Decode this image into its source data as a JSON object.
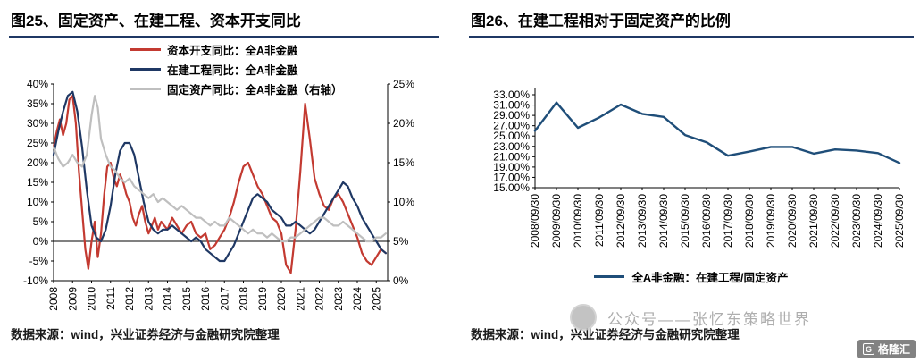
{
  "chart_data": [
    {
      "id": "fig25",
      "type": "line",
      "title": "图25、固定资产、在建工程、资本开支同比",
      "source": "数据来源：wind，兴业证券经济与金融研究院整理",
      "legend_position": "top",
      "grid": false,
      "x_tick_labels": [
        "2008",
        "2009",
        "2010",
        "2011",
        "2012",
        "2013",
        "2014",
        "2015",
        "2016",
        "2017",
        "2018",
        "2019",
        "2020",
        "2021",
        "2022",
        "2023",
        "2024",
        "2025"
      ],
      "left_axis": {
        "min": -10,
        "max": 40,
        "step": 5,
        "labels": [
          "40%",
          "35%",
          "30%",
          "25%",
          "20%",
          "15%",
          "10%",
          "5%",
          "0%",
          "-5%",
          "-10%"
        ]
      },
      "right_axis": {
        "min": 0,
        "max": 25,
        "step": 5,
        "labels": [
          "25%",
          "20%",
          "15%",
          "10%",
          "5%",
          "0%"
        ]
      },
      "series": [
        {
          "name": "资本开支同比：全A非金融",
          "color": "#C33A31",
          "axis": "left",
          "points": [
            [
              2008.0,
              24
            ],
            [
              2008.17,
              28
            ],
            [
              2008.33,
              31
            ],
            [
              2008.5,
              27
            ],
            [
              2008.67,
              30
            ],
            [
              2008.83,
              36
            ],
            [
              2009.0,
              37
            ],
            [
              2009.17,
              30
            ],
            [
              2009.33,
              18
            ],
            [
              2009.5,
              8
            ],
            [
              2009.67,
              -2
            ],
            [
              2009.83,
              -7
            ],
            [
              2010.0,
              0
            ],
            [
              2010.17,
              5
            ],
            [
              2010.33,
              -4
            ],
            [
              2010.5,
              2
            ],
            [
              2010.67,
              12
            ],
            [
              2010.83,
              19
            ],
            [
              2011.0,
              20
            ],
            [
              2011.17,
              16
            ],
            [
              2011.33,
              14
            ],
            [
              2011.5,
              17
            ],
            [
              2011.67,
              15
            ],
            [
              2011.83,
              12
            ],
            [
              2012.0,
              10
            ],
            [
              2012.17,
              6
            ],
            [
              2012.33,
              4
            ],
            [
              2012.5,
              7
            ],
            [
              2012.67,
              9
            ],
            [
              2012.83,
              5
            ],
            [
              2013.0,
              2
            ],
            [
              2013.17,
              4
            ],
            [
              2013.33,
              6
            ],
            [
              2013.5,
              3
            ],
            [
              2013.67,
              5
            ],
            [
              2013.83,
              4
            ],
            [
              2014.0,
              3
            ],
            [
              2014.25,
              6
            ],
            [
              2014.5,
              4
            ],
            [
              2014.75,
              2
            ],
            [
              2015.0,
              4
            ],
            [
              2015.25,
              5
            ],
            [
              2015.5,
              2
            ],
            [
              2015.75,
              1
            ],
            [
              2016.0,
              2
            ],
            [
              2016.25,
              -2
            ],
            [
              2016.5,
              -1
            ],
            [
              2016.75,
              1
            ],
            [
              2017.0,
              3
            ],
            [
              2017.25,
              6
            ],
            [
              2017.5,
              10
            ],
            [
              2017.75,
              15
            ],
            [
              2018.0,
              19
            ],
            [
              2018.25,
              20
            ],
            [
              2018.5,
              17
            ],
            [
              2018.75,
              14
            ],
            [
              2019.0,
              12
            ],
            [
              2019.25,
              9
            ],
            [
              2019.5,
              6
            ],
            [
              2019.75,
              5
            ],
            [
              2020.0,
              2
            ],
            [
              2020.25,
              -6
            ],
            [
              2020.5,
              -8
            ],
            [
              2020.75,
              3
            ],
            [
              2021.0,
              18
            ],
            [
              2021.25,
              35
            ],
            [
              2021.5,
              26
            ],
            [
              2021.75,
              16
            ],
            [
              2022.0,
              12
            ],
            [
              2022.25,
              9
            ],
            [
              2022.5,
              8
            ],
            [
              2022.75,
              11
            ],
            [
              2023.0,
              12
            ],
            [
              2023.25,
              10
            ],
            [
              2023.5,
              7
            ],
            [
              2023.75,
              4
            ],
            [
              2024.0,
              1
            ],
            [
              2024.25,
              -3
            ],
            [
              2024.5,
              -5
            ],
            [
              2024.75,
              -6
            ],
            [
              2025.0,
              -4
            ],
            [
              2025.25,
              -2
            ],
            [
              2025.5,
              -3
            ]
          ]
        },
        {
          "name": "在建工程同比：全A非金融",
          "color": "#1F3864",
          "axis": "left",
          "points": [
            [
              2008.0,
              22
            ],
            [
              2008.25,
              28
            ],
            [
              2008.5,
              33
            ],
            [
              2008.75,
              37
            ],
            [
              2009.0,
              38
            ],
            [
              2009.25,
              33
            ],
            [
              2009.5,
              24
            ],
            [
              2009.75,
              13
            ],
            [
              2010.0,
              4
            ],
            [
              2010.25,
              1
            ],
            [
              2010.5,
              0
            ],
            [
              2010.75,
              3
            ],
            [
              2011.0,
              9
            ],
            [
              2011.25,
              17
            ],
            [
              2011.5,
              23
            ],
            [
              2011.75,
              25
            ],
            [
              2012.0,
              25
            ],
            [
              2012.25,
              22
            ],
            [
              2012.5,
              16
            ],
            [
              2012.75,
              10
            ],
            [
              2013.0,
              5
            ],
            [
              2013.25,
              3
            ],
            [
              2013.5,
              2
            ],
            [
              2013.75,
              3
            ],
            [
              2014.0,
              3
            ],
            [
              2014.25,
              4
            ],
            [
              2014.5,
              3
            ],
            [
              2014.75,
              2
            ],
            [
              2015.0,
              1
            ],
            [
              2015.25,
              0
            ],
            [
              2015.5,
              1
            ],
            [
              2015.75,
              0
            ],
            [
              2016.0,
              -2
            ],
            [
              2016.25,
              -3
            ],
            [
              2016.5,
              -4
            ],
            [
              2016.75,
              -5
            ],
            [
              2017.0,
              -5
            ],
            [
              2017.25,
              -3
            ],
            [
              2017.5,
              -1
            ],
            [
              2017.75,
              2
            ],
            [
              2018.0,
              5
            ],
            [
              2018.25,
              8
            ],
            [
              2018.5,
              11
            ],
            [
              2018.75,
              12
            ],
            [
              2019.0,
              11
            ],
            [
              2019.25,
              10
            ],
            [
              2019.5,
              8
            ],
            [
              2019.75,
              7
            ],
            [
              2020.0,
              6
            ],
            [
              2020.25,
              4
            ],
            [
              2020.5,
              4
            ],
            [
              2020.75,
              5
            ],
            [
              2021.0,
              4
            ],
            [
              2021.25,
              3
            ],
            [
              2021.5,
              2
            ],
            [
              2021.75,
              3
            ],
            [
              2022.0,
              5
            ],
            [
              2022.25,
              7
            ],
            [
              2022.5,
              9
            ],
            [
              2022.75,
              11
            ],
            [
              2023.0,
              13
            ],
            [
              2023.25,
              15
            ],
            [
              2023.5,
              14
            ],
            [
              2023.75,
              11
            ],
            [
              2024.0,
              9
            ],
            [
              2024.25,
              6
            ],
            [
              2024.5,
              4
            ],
            [
              2024.75,
              2
            ],
            [
              2025.0,
              0
            ],
            [
              2025.25,
              -2
            ],
            [
              2025.5,
              -3
            ]
          ]
        },
        {
          "name": "固定资产同比：全A非金融（右轴）",
          "color": "#BFBFBF",
          "axis": "right",
          "points": [
            [
              2008.0,
              17
            ],
            [
              2008.25,
              15.5
            ],
            [
              2008.5,
              14.5
            ],
            [
              2008.75,
              15
            ],
            [
              2009.0,
              16
            ],
            [
              2009.25,
              15
            ],
            [
              2009.5,
              14.5
            ],
            [
              2009.75,
              16
            ],
            [
              2010.0,
              21
            ],
            [
              2010.17,
              23.5
            ],
            [
              2010.33,
              22
            ],
            [
              2010.5,
              18
            ],
            [
              2010.75,
              16
            ],
            [
              2011.0,
              14.5
            ],
            [
              2011.25,
              14
            ],
            [
              2011.5,
              13
            ],
            [
              2011.75,
              12.5
            ],
            [
              2012.0,
              13
            ],
            [
              2012.25,
              12
            ],
            [
              2012.5,
              11.5
            ],
            [
              2012.75,
              11
            ],
            [
              2013.0,
              10.5
            ],
            [
              2013.25,
              11
            ],
            [
              2013.5,
              10
            ],
            [
              2013.75,
              10.5
            ],
            [
              2014.0,
              10
            ],
            [
              2014.25,
              9.5
            ],
            [
              2014.5,
              9
            ],
            [
              2014.75,
              9.5
            ],
            [
              2015.0,
              9
            ],
            [
              2015.25,
              8.5
            ],
            [
              2015.5,
              8
            ],
            [
              2015.75,
              8
            ],
            [
              2016.0,
              7.5
            ],
            [
              2016.25,
              7
            ],
            [
              2016.5,
              7.5
            ],
            [
              2016.75,
              7
            ],
            [
              2017.0,
              7
            ],
            [
              2017.25,
              8
            ],
            [
              2017.5,
              7.5
            ],
            [
              2017.75,
              7
            ],
            [
              2018.0,
              6.5
            ],
            [
              2018.25,
              6
            ],
            [
              2018.5,
              6.5
            ],
            [
              2018.75,
              6
            ],
            [
              2019.0,
              6
            ],
            [
              2019.25,
              5.5
            ],
            [
              2019.5,
              6
            ],
            [
              2019.75,
              5.5
            ],
            [
              2020.0,
              5
            ],
            [
              2020.25,
              5
            ],
            [
              2020.5,
              5.5
            ],
            [
              2020.75,
              5.5
            ],
            [
              2021.0,
              6
            ],
            [
              2021.25,
              6.5
            ],
            [
              2021.5,
              7
            ],
            [
              2021.75,
              7.5
            ],
            [
              2022.0,
              8
            ],
            [
              2022.25,
              8
            ],
            [
              2022.5,
              7.5
            ],
            [
              2022.75,
              7
            ],
            [
              2023.0,
              7
            ],
            [
              2023.25,
              7.5
            ],
            [
              2023.5,
              7
            ],
            [
              2023.75,
              6.5
            ],
            [
              2024.0,
              6
            ],
            [
              2024.25,
              5.5
            ],
            [
              2024.5,
              5
            ],
            [
              2024.75,
              5
            ],
            [
              2025.0,
              5.5
            ],
            [
              2025.25,
              5.5
            ],
            [
              2025.5,
              6
            ]
          ]
        }
      ]
    },
    {
      "id": "fig26",
      "type": "line",
      "title": "图26、在建工程相对于固定资产的比例",
      "source": "数据来源：wind，兴业证券经济与金融研究院整理",
      "legend_position": "bottom",
      "grid": false,
      "x_tick_labels": [
        "2008/09/30",
        "2009/09/30",
        "2010/09/30",
        "2011/09/30",
        "2012/09/30",
        "2013/09/30",
        "2014/09/30",
        "2015/09/30",
        "2016/09/30",
        "2017/09/30",
        "2018/09/30",
        "2019/09/30",
        "2020/09/30",
        "2021/09/30",
        "2022/09/30",
        "2023/09/30",
        "2024/09/30",
        "2025/09/30"
      ],
      "y_axis": {
        "min": 15,
        "max": 33,
        "step": 2,
        "labels": [
          "33.00%",
          "31.00%",
          "29.00%",
          "27.00%",
          "25.00%",
          "23.00%",
          "21.00%",
          "19.00%",
          "17.00%",
          "15.00%"
        ]
      },
      "series": [
        {
          "name": "全A非金融：在建工程/固定资产",
          "color": "#1F4E79",
          "values": [
            26.0,
            31.5,
            26.6,
            28.6,
            31.1,
            29.3,
            28.7,
            25.2,
            23.8,
            21.2,
            22.0,
            22.9,
            22.9,
            21.6,
            22.4,
            22.2,
            21.7,
            19.8
          ]
        }
      ]
    }
  ],
  "watermark": {
    "text": "公众号——张忆东策略世界"
  },
  "logo": {
    "text": "格隆汇",
    "icon": "G"
  }
}
